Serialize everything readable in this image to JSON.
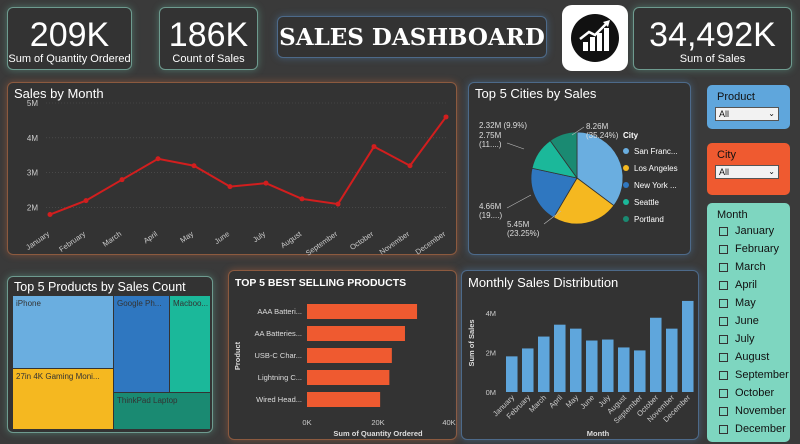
{
  "kpis": {
    "quantity": {
      "value": "209K",
      "label": "Sum of Quantity Ordered"
    },
    "count": {
      "value": "186K",
      "label": "Count of Sales"
    },
    "sales": {
      "value": "34,492K",
      "label": "Sum of Sales"
    }
  },
  "header": {
    "title": "SALES DASHBOARD",
    "logo_icon": "rising-bar-chart-icon"
  },
  "sales_by_month": {
    "title": "Sales by Month",
    "y_ticks": [
      "5M",
      "4M",
      "3M",
      "2M"
    ],
    "chart_data": {
      "type": "line",
      "categories": [
        "January",
        "February",
        "March",
        "April",
        "May",
        "June",
        "July",
        "August",
        "September",
        "October",
        "November",
        "December"
      ],
      "values": [
        1.8,
        2.2,
        2.8,
        3.4,
        3.2,
        2.6,
        2.7,
        2.25,
        2.1,
        3.75,
        3.2,
        4.6
      ],
      "ylim": [
        1.5,
        5
      ],
      "color": "#d21e1e"
    }
  },
  "top_cities": {
    "title": "Top 5 Cities by Sales",
    "legend_title": "City",
    "legend": [
      "San Franc...",
      "Los Angeles",
      "New York ...",
      "Seattle",
      "Portland"
    ],
    "labels": {
      "sf": [
        "8.26M",
        "(35.24%)"
      ],
      "la": [
        "5.45M",
        "(23.25%)"
      ],
      "ny": [
        "4.66M",
        "(19....)"
      ],
      "seattle": [
        "2.75M",
        "(11....)"
      ],
      "portland": "2.32M (9.9%)"
    },
    "chart_data": {
      "type": "pie",
      "categories": [
        "San Francisco",
        "Los Angeles",
        "New York",
        "Seattle",
        "Portland"
      ],
      "values": [
        35.24,
        23.25,
        19.9,
        11.7,
        9.9
      ],
      "colors": [
        "#6aaee0",
        "#f5b820",
        "#2f77c0",
        "#1bb89a",
        "#1a8a72"
      ]
    }
  },
  "slicers": {
    "product": {
      "label": "Product",
      "value": "All"
    },
    "city": {
      "label": "City",
      "value": "All"
    },
    "month": {
      "label": "Month",
      "items": [
        "January",
        "February",
        "March",
        "April",
        "May",
        "June",
        "July",
        "August",
        "September",
        "October",
        "November",
        "December"
      ]
    }
  },
  "top_products_count": {
    "title": "Top 5 Products by Sales Count",
    "cells": [
      "iPhone",
      "Google Ph...",
      "Macboo...",
      "27in 4K Gaming Moni...",
      "ThinkPad Laptop"
    ]
  },
  "best_selling": {
    "title": "TOP 5 BEST SELLING PRODUCTS",
    "y_axis_label": "Product",
    "x_axis_label": "Sum of Quantity Ordered",
    "x_ticks": [
      "0K",
      "20K",
      "40K"
    ],
    "chart_data": {
      "type": "bar",
      "categories": [
        "AAA Batteri...",
        "AA Batteries...",
        "USB-C Char...",
        "Lightning C...",
        "Wired Head..."
      ],
      "values": [
        31,
        27.6,
        23.9,
        23.2,
        20.6
      ],
      "xlim": [
        0,
        40
      ],
      "color": "#ef5a30"
    }
  },
  "monthly_dist": {
    "title": "Monthly Sales Distribution",
    "y_axis_label": "Sum of Sales",
    "x_axis_label": "Month",
    "y_ticks": [
      "4M",
      "2M",
      "0M"
    ],
    "chart_data": {
      "type": "bar",
      "categories": [
        "January",
        "February",
        "March",
        "April",
        "May",
        "June",
        "July",
        "August",
        "September",
        "October",
        "November",
        "December"
      ],
      "values": [
        1.8,
        2.2,
        2.8,
        3.4,
        3.2,
        2.6,
        2.65,
        2.25,
        2.1,
        3.75,
        3.2,
        4.6
      ],
      "ylim": [
        0,
        5
      ],
      "color": "#5fa6dc"
    }
  }
}
